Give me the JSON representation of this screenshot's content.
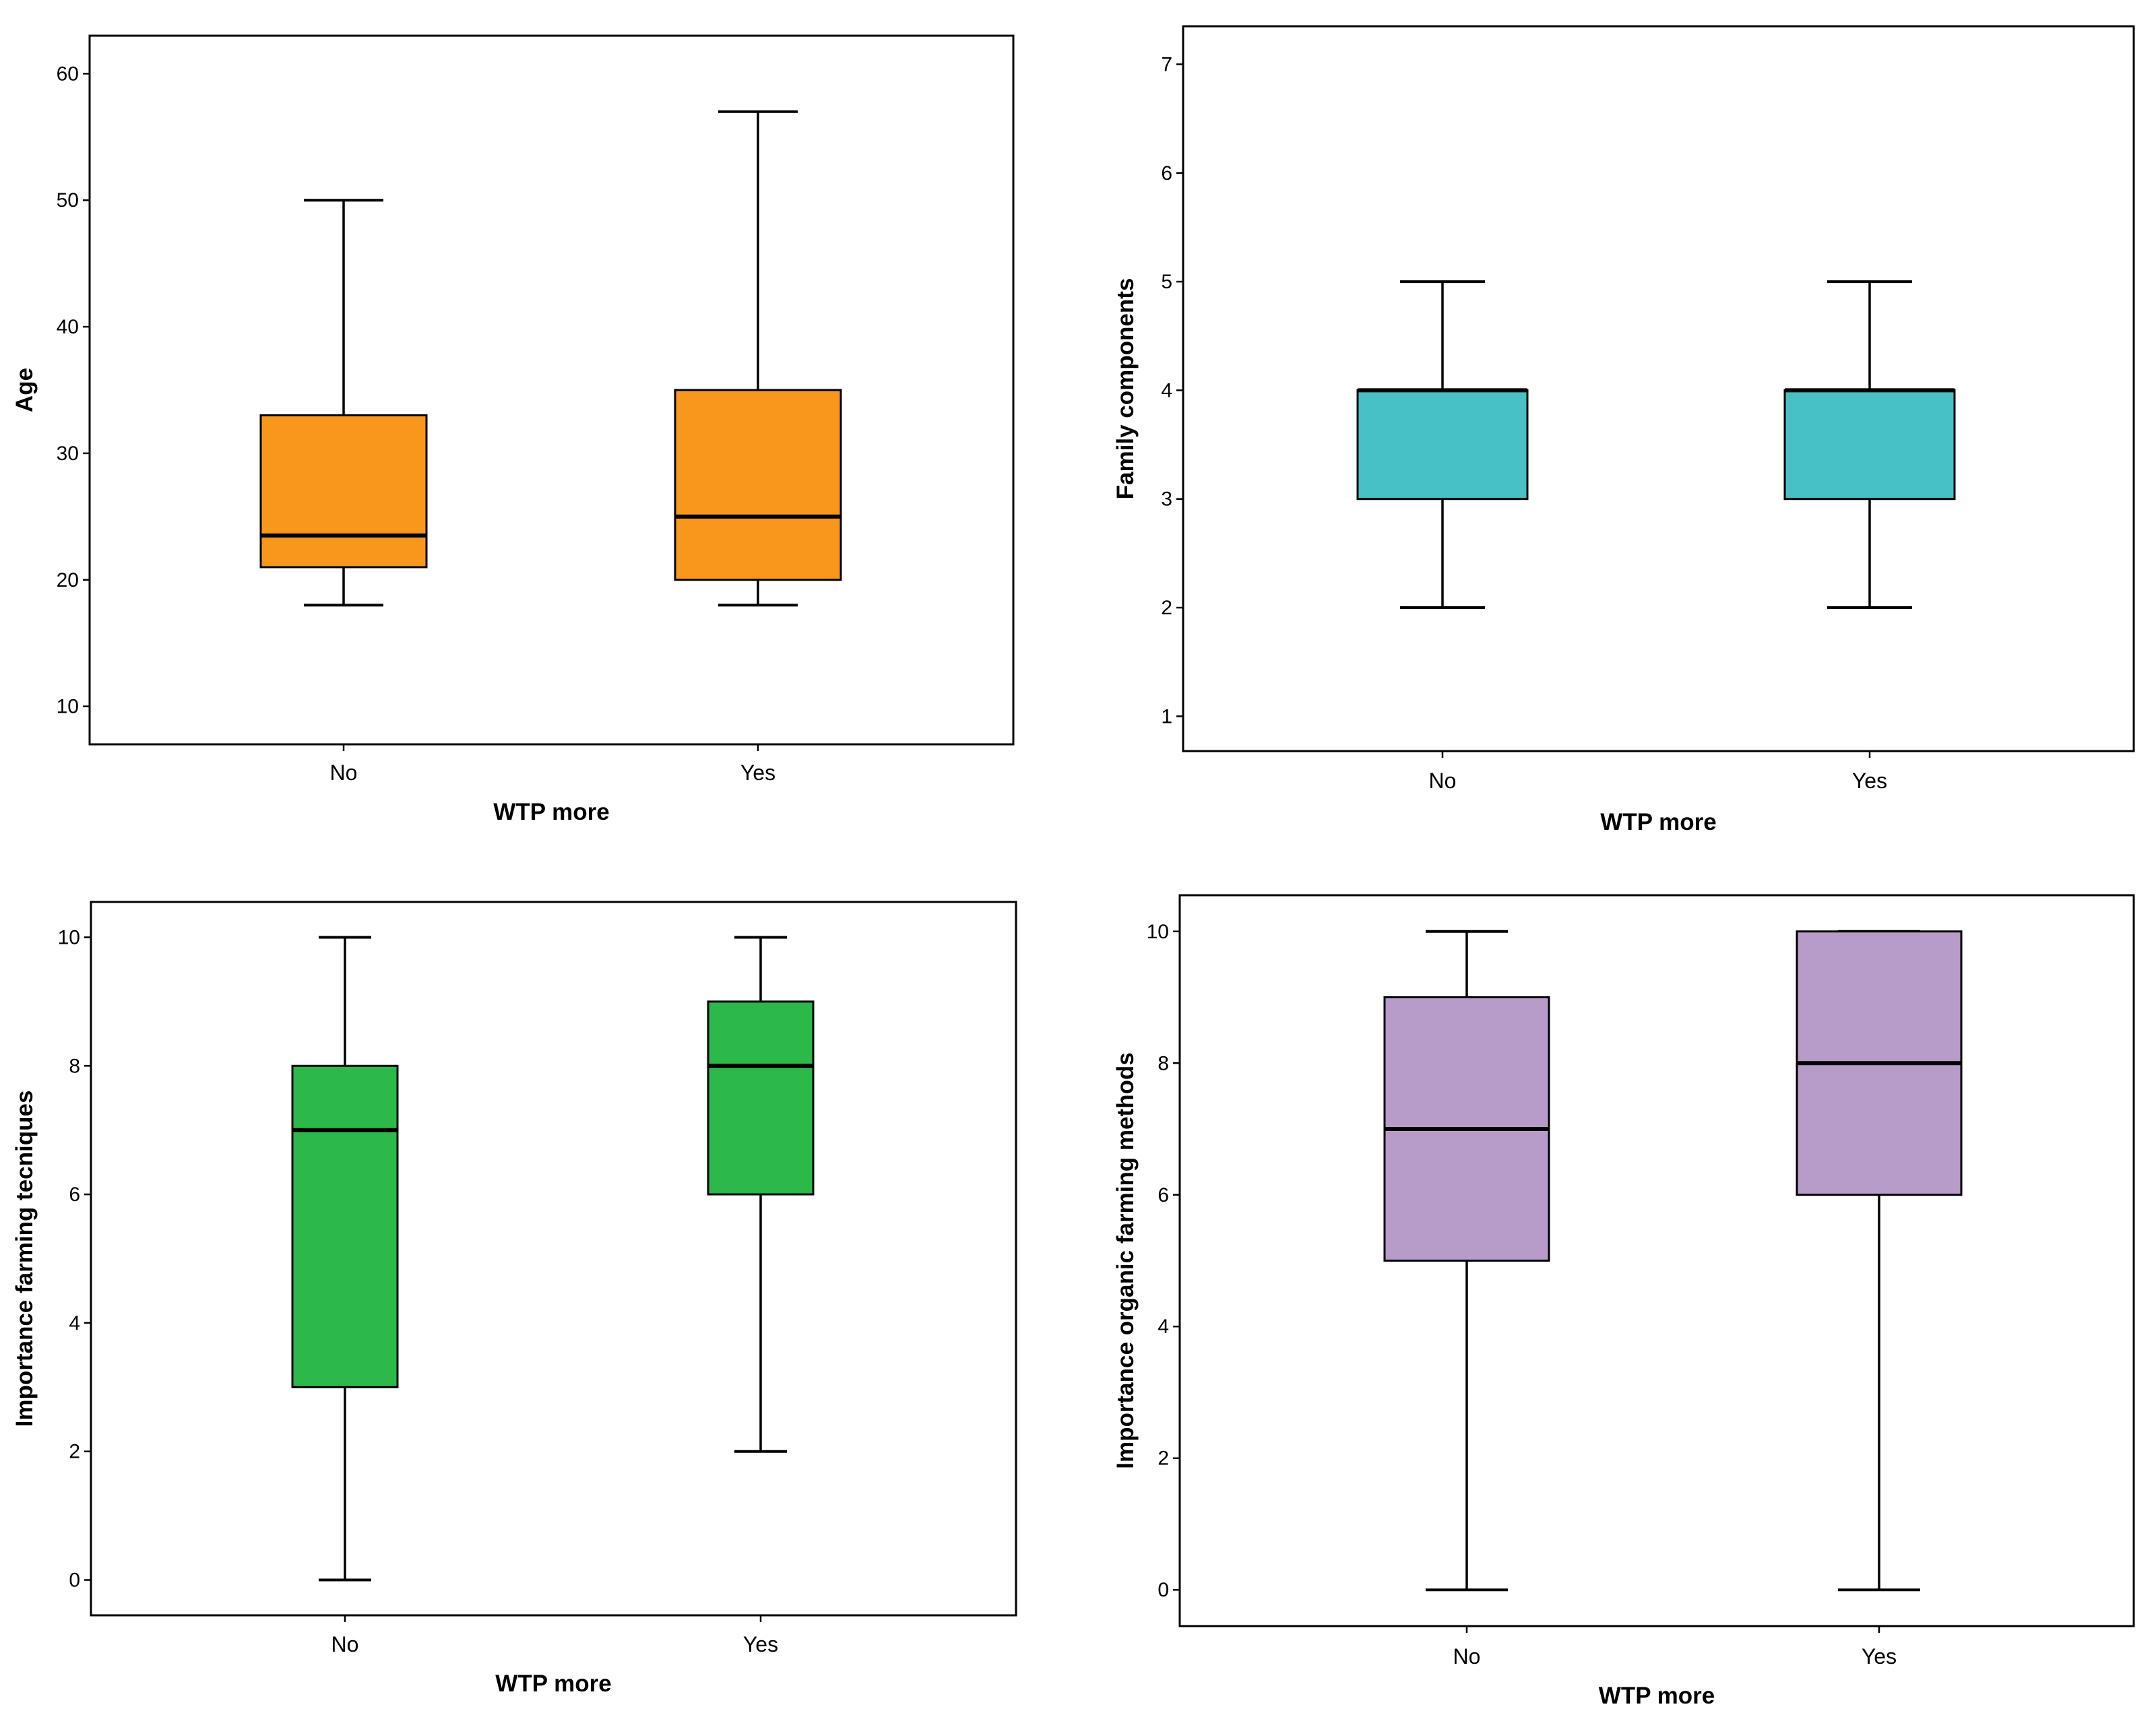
{
  "chart_data": [
    {
      "type": "boxplot",
      "xlabel": "WTP more",
      "ylabel": "Age",
      "categories": [
        "No",
        "Yes"
      ],
      "ylim": [
        7,
        63
      ],
      "yticks": [
        10,
        20,
        30,
        40,
        50,
        60
      ],
      "color": "#F7981D",
      "boxes": [
        {
          "category": "No",
          "min": 18,
          "q1": 21,
          "median": 23.5,
          "q3": 33,
          "max": 50
        },
        {
          "category": "Yes",
          "min": 18,
          "q1": 20,
          "median": 25,
          "q3": 35,
          "max": 57
        }
      ]
    },
    {
      "type": "boxplot",
      "xlabel": "WTP more",
      "ylabel": "Family components",
      "categories": [
        "No",
        "Yes"
      ],
      "ylim": [
        0.68,
        7.35
      ],
      "yticks": [
        1,
        2,
        3,
        4,
        5,
        6,
        7
      ],
      "color": "#47C1C5",
      "boxes": [
        {
          "category": "No",
          "min": 2,
          "q1": 3,
          "median": 4,
          "q3": 4,
          "max": 5
        },
        {
          "category": "Yes",
          "min": 2,
          "q1": 3,
          "median": 4,
          "q3": 4,
          "max": 5
        }
      ]
    },
    {
      "type": "boxplot",
      "xlabel": "WTP more",
      "ylabel": "Importance farming tecniques",
      "categories": [
        "No",
        "Yes"
      ],
      "ylim": [
        -0.55,
        10.55
      ],
      "yticks": [
        0,
        2,
        4,
        6,
        8,
        10
      ],
      "color": "#2DB84A",
      "boxes": [
        {
          "category": "No",
          "min": 0,
          "q1": 3,
          "median": 7,
          "q3": 8,
          "max": 10
        },
        {
          "category": "Yes",
          "min": 2,
          "q1": 6,
          "median": 8,
          "q3": 9,
          "max": 10
        }
      ]
    },
    {
      "type": "boxplot",
      "xlabel": "WTP more",
      "ylabel": "Importance organic farming methods",
      "categories": [
        "No",
        "Yes"
      ],
      "ylim": [
        -0.55,
        10.55
      ],
      "yticks": [
        0,
        2,
        4,
        6,
        8,
        10
      ],
      "color": "#B79BC9",
      "boxes": [
        {
          "category": "No",
          "min": 0,
          "q1": 5,
          "median": 7,
          "q3": 9,
          "max": 10
        },
        {
          "category": "Yes",
          "min": 0,
          "q1": 6,
          "median": 8,
          "q3": 10,
          "max": 10
        }
      ]
    }
  ]
}
